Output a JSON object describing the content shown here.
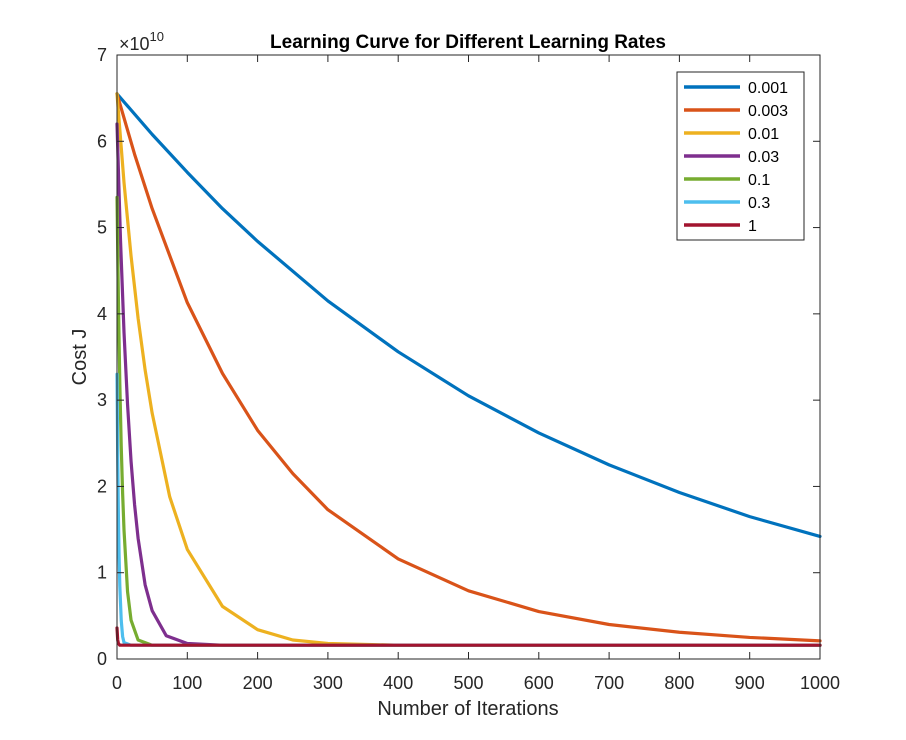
{
  "chart_data": {
    "type": "line",
    "title": "Learning Curve for Different Learning Rates",
    "xlabel": "Number of Iterations",
    "ylabel": "Cost J",
    "xlim": [
      0,
      1000
    ],
    "ylim": [
      0,
      7
    ],
    "y_multiplier_base": "×10",
    "y_multiplier_exponent": "10",
    "xticks": [
      "0",
      "100",
      "200",
      "300",
      "400",
      "500",
      "600",
      "700",
      "800",
      "900",
      "1000"
    ],
    "yticks": [
      "0",
      "1",
      "2",
      "3",
      "4",
      "5",
      "6",
      "7"
    ],
    "grid": false,
    "legend_position": "top-right",
    "series": [
      {
        "name": "0.001",
        "color": "#0072BD",
        "x": [
          0,
          50,
          100,
          150,
          200,
          300,
          400,
          500,
          600,
          700,
          800,
          900,
          1000
        ],
        "y": [
          6.55,
          6.08,
          5.64,
          5.22,
          4.84,
          4.15,
          3.56,
          3.05,
          2.62,
          2.25,
          1.93,
          1.65,
          1.42
        ]
      },
      {
        "name": "0.003",
        "color": "#D95319",
        "x": [
          0,
          25,
          50,
          100,
          150,
          200,
          250,
          300,
          400,
          500,
          600,
          700,
          800,
          900,
          1000
        ],
        "y": [
          6.55,
          5.85,
          5.22,
          4.13,
          3.31,
          2.65,
          2.15,
          1.73,
          1.16,
          0.79,
          0.55,
          0.4,
          0.31,
          0.25,
          0.21
        ]
      },
      {
        "name": "0.01",
        "color": "#EDB120",
        "x": [
          0,
          10,
          20,
          30,
          40,
          50,
          75,
          100,
          150,
          200,
          250,
          300,
          400,
          1000
        ],
        "y": [
          6.55,
          5.52,
          4.67,
          3.95,
          3.35,
          2.85,
          1.88,
          1.27,
          0.61,
          0.34,
          0.22,
          0.18,
          0.16,
          0.16
        ]
      },
      {
        "name": "0.03",
        "color": "#7E2F8E",
        "x": [
          0,
          5,
          10,
          15,
          20,
          25,
          30,
          40,
          50,
          70,
          100,
          150,
          1000
        ],
        "y": [
          6.2,
          4.85,
          3.78,
          2.95,
          2.29,
          1.79,
          1.4,
          0.86,
          0.56,
          0.27,
          0.18,
          0.16,
          0.16
        ]
      },
      {
        "name": "0.1",
        "color": "#77AC30",
        "x": [
          0,
          2,
          4,
          6,
          8,
          10,
          15,
          20,
          30,
          50,
          1000
        ],
        "y": [
          5.35,
          4.15,
          3.2,
          2.47,
          1.92,
          1.49,
          0.78,
          0.45,
          0.22,
          0.16,
          0.16
        ]
      },
      {
        "name": "0.3",
        "color": "#4DBEEE",
        "x": [
          0,
          1,
          2,
          3,
          4,
          6,
          8,
          10,
          20,
          1000
        ],
        "y": [
          3.3,
          2.35,
          1.65,
          1.18,
          0.85,
          0.45,
          0.26,
          0.19,
          0.16,
          0.16
        ]
      },
      {
        "name": "1",
        "color": "#A2142F",
        "x": [
          0,
          1,
          2,
          4,
          8,
          1000
        ],
        "y": [
          0.36,
          0.22,
          0.18,
          0.16,
          0.16,
          0.16
        ]
      }
    ]
  }
}
